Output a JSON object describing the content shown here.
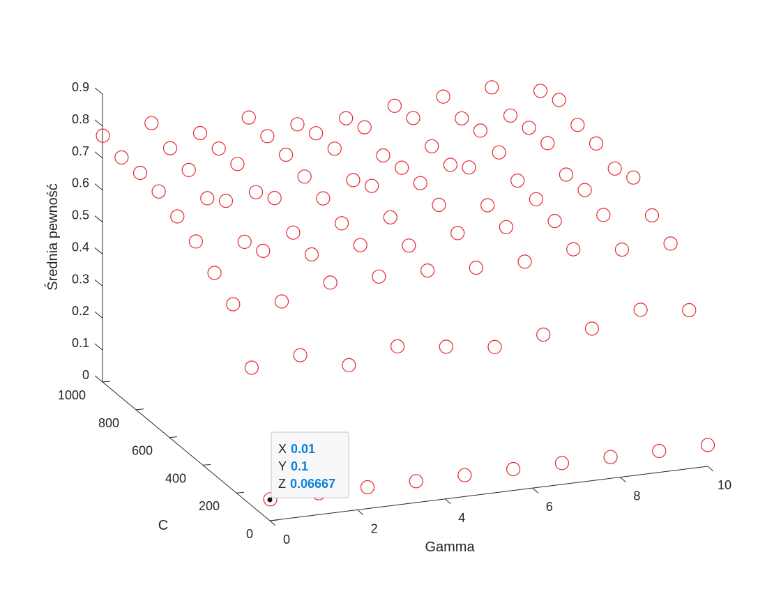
{
  "chart_data": {
    "type": "scatter3d",
    "title": "",
    "xlabel": "Gamma",
    "ylabel": "C",
    "zlabel": "Średnia pewność",
    "xlim": [
      0,
      10
    ],
    "ylim": [
      0,
      1000
    ],
    "zlim": [
      0,
      0.9
    ],
    "xticks": [
      "0",
      "2",
      "4",
      "6",
      "8",
      "10"
    ],
    "yticks": [
      "0",
      "200",
      "400",
      "600",
      "800",
      "1000"
    ],
    "zticks": [
      "0",
      "0.1",
      "0.2",
      "0.3",
      "0.4",
      "0.5",
      "0.6",
      "0.7",
      "0.8",
      "0.9"
    ],
    "grid": false,
    "marker": "open-circle",
    "marker_color": "#e8262a",
    "gamma_values": [
      0.01,
      1.12,
      2.23,
      3.34,
      4.45,
      5.56,
      6.67,
      7.78,
      8.89,
      10
    ],
    "c_values": [
      0.1,
      111.2,
      222.3,
      333.4,
      444.5,
      555.6,
      666.7,
      777.8,
      888.9,
      1000
    ],
    "z_by_c": [
      [
        0.06667,
        0.06667,
        0.06667,
        0.06667,
        0.06667,
        0.06667,
        0.06667,
        0.06667,
        0.06667,
        0.06667
      ],
      [
        0.43,
        0.45,
        0.4,
        0.44,
        0.42,
        0.4,
        0.42,
        0.42,
        0.46,
        0.44
      ],
      [
        0.58,
        0.57,
        0.61,
        0.61,
        0.61,
        0.6,
        0.6,
        0.62,
        0.6,
        0.6
      ],
      [
        0.63,
        0.68,
        0.65,
        0.66,
        0.64,
        0.66,
        0.66,
        0.66,
        0.66,
        0.64
      ],
      [
        0.68,
        0.66,
        0.67,
        0.68,
        0.68,
        0.7,
        0.68,
        0.68,
        0.69,
        0.71
      ],
      [
        0.71,
        0.74,
        0.73,
        0.71,
        0.73,
        0.72,
        0.75,
        0.69,
        0.69,
        0.69
      ],
      [
        0.74,
        0.7,
        0.7,
        0.73,
        0.7,
        0.72,
        0.71,
        0.73,
        0.74,
        0.72
      ],
      [
        0.75,
        0.74,
        0.74,
        0.75,
        0.75,
        0.71,
        0.72,
        0.75,
        0.74,
        0.73
      ],
      [
        0.75,
        0.76,
        0.74,
        0.76,
        0.75,
        0.75,
        0.76,
        0.74,
        0.73,
        0.76
      ],
      [
        0.77,
        0.79,
        0.74,
        0.77,
        0.73,
        0.73,
        0.75,
        0.76,
        0.77,
        0.74
      ]
    ],
    "datatip": {
      "x_key": "X",
      "x_value": "0.01",
      "y_key": "Y",
      "y_value": "0.1",
      "z_key": "Z",
      "z_value": "0.06667"
    }
  }
}
